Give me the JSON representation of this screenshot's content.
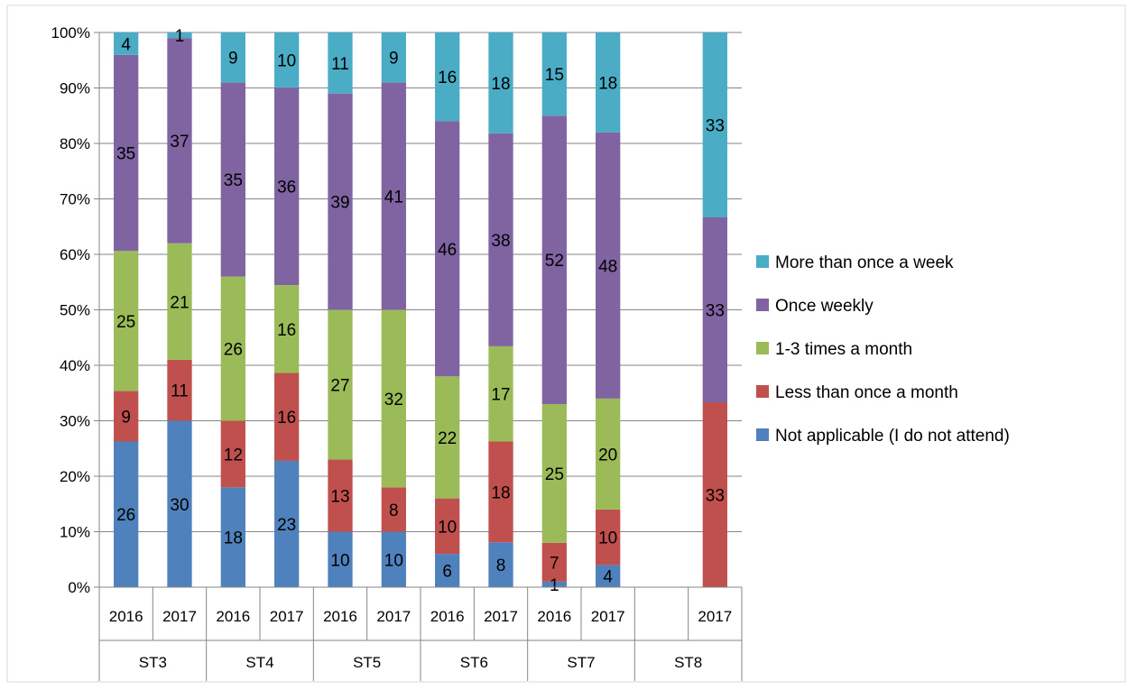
{
  "chart_data": {
    "type": "bar",
    "stacked": true,
    "percent_stacked": true,
    "grid": true,
    "legend_position": "right",
    "y_ticks": [
      "0%",
      "10%",
      "20%",
      "30%",
      "40%",
      "50%",
      "60%",
      "70%",
      "80%",
      "90%",
      "100%"
    ],
    "ylim": [
      0,
      100
    ],
    "groups": [
      {
        "name": "ST3",
        "years": [
          "2016",
          "2017"
        ]
      },
      {
        "name": "ST4",
        "years": [
          "2016",
          "2017"
        ]
      },
      {
        "name": "ST5",
        "years": [
          "2016",
          "2017"
        ]
      },
      {
        "name": "ST6",
        "years": [
          "2016",
          "2017"
        ]
      },
      {
        "name": "ST7",
        "years": [
          "2016",
          "2017"
        ]
      },
      {
        "name": "ST8",
        "years": [
          "",
          "2017"
        ]
      }
    ],
    "series": [
      {
        "name": "Not applicable (I do not attend)",
        "color": "#4f81bd",
        "values": [
          26,
          30,
          18,
          23,
          10,
          10,
          6,
          8,
          1,
          4,
          0,
          0
        ],
        "labels": [
          "26",
          "30",
          "18",
          "23",
          "10",
          "10",
          "6",
          "8",
          "1",
          "4",
          "",
          ""
        ]
      },
      {
        "name": "Less than once a month",
        "color": "#c0504d",
        "values": [
          9,
          11,
          12,
          16,
          13,
          8,
          10,
          18,
          7,
          10,
          0,
          33
        ],
        "labels": [
          "9",
          "11",
          "12",
          "16",
          "13",
          "8",
          "10",
          "18",
          "7",
          "10",
          "",
          "33"
        ]
      },
      {
        "name": "1-3 times a month",
        "color": "#9bbb59",
        "values": [
          25,
          21,
          26,
          16,
          27,
          32,
          22,
          17,
          25,
          20,
          0,
          0
        ],
        "labels": [
          "25",
          "21",
          "26",
          "16",
          "27",
          "32",
          "22",
          "17",
          "25",
          "20",
          "",
          ""
        ]
      },
      {
        "name": "Once weekly",
        "color": "#8064a2",
        "values": [
          35,
          37,
          35,
          36,
          39,
          41,
          46,
          38,
          52,
          48,
          0,
          33
        ],
        "labels": [
          "35",
          "37",
          "35",
          "36",
          "39",
          "41",
          "46",
          "38",
          "52",
          "48",
          "",
          "33"
        ]
      },
      {
        "name": "More than once a week",
        "color": "#4bacc6",
        "values": [
          4,
          1,
          9,
          10,
          11,
          9,
          16,
          18,
          15,
          18,
          0,
          33
        ],
        "labels": [
          "4",
          "1",
          "9",
          "10",
          "11",
          "9",
          "16",
          "18",
          "15",
          "18",
          "",
          "33"
        ]
      }
    ],
    "legend_order": [
      4,
      3,
      2,
      1,
      0
    ]
  }
}
